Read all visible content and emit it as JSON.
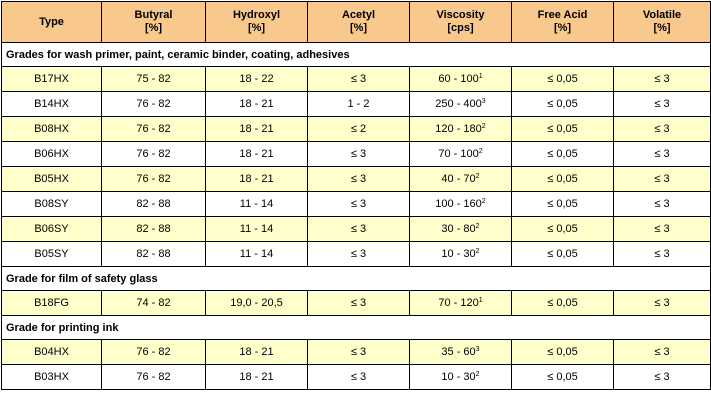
{
  "header": {
    "columns": [
      {
        "title": "Type",
        "unit": ""
      },
      {
        "title": "Butyral",
        "unit": "[%]"
      },
      {
        "title": "Hydroxyl",
        "unit": "[%]"
      },
      {
        "title": "Acetyl",
        "unit": "[%]"
      },
      {
        "title": "Viscosity",
        "unit": "[cps]"
      },
      {
        "title": "Free Acid",
        "unit": "[%]"
      },
      {
        "title": "Volatile",
        "unit": "[%]"
      }
    ]
  },
  "sections": [
    {
      "title": "Grades for wash primer, paint, ceramic binder, coating, adhesives",
      "rows": [
        {
          "type": "B17HX",
          "butyral": "75 - 82",
          "hydroxyl": "18 - 22",
          "acetyl": "≤ 3",
          "viscosity": "60 - 100",
          "viscosity_note": "1",
          "free_acid": "≤ 0,05",
          "volatile": "≤ 3"
        },
        {
          "type": "B14HX",
          "butyral": "76 - 82",
          "hydroxyl": "18 - 21",
          "acetyl": "1 - 2",
          "viscosity": "250 - 400",
          "viscosity_note": "3",
          "free_acid": "≤ 0,05",
          "volatile": "≤ 3"
        },
        {
          "type": "B08HX",
          "butyral": "76 - 82",
          "hydroxyl": "18 - 21",
          "acetyl": "≤ 2",
          "viscosity": "120 - 180",
          "viscosity_note": "2",
          "free_acid": "≤ 0,05",
          "volatile": "≤ 3"
        },
        {
          "type": "B06HX",
          "butyral": "76 - 82",
          "hydroxyl": "18 - 21",
          "acetyl": "≤ 3",
          "viscosity": "70 - 100",
          "viscosity_note": "2",
          "free_acid": "≤ 0,05",
          "volatile": "≤ 3"
        },
        {
          "type": "B05HX",
          "butyral": "76 - 82",
          "hydroxyl": "18 - 21",
          "acetyl": "≤ 3",
          "viscosity": "40 - 70",
          "viscosity_note": "2",
          "free_acid": "≤ 0,05",
          "volatile": "≤ 3"
        },
        {
          "type": "B08SY",
          "butyral": "82 - 88",
          "hydroxyl": "11 - 14",
          "acetyl": "≤ 3",
          "viscosity": "100 - 160",
          "viscosity_note": "2",
          "free_acid": "≤ 0,05",
          "volatile": "≤ 3"
        },
        {
          "type": "B06SY",
          "butyral": "82 - 88",
          "hydroxyl": "11 - 14",
          "acetyl": "≤ 3",
          "viscosity": "30 - 80",
          "viscosity_note": "2",
          "free_acid": "≤ 0,05",
          "volatile": "≤ 3"
        },
        {
          "type": "B05SY",
          "butyral": "82 - 88",
          "hydroxyl": "11 - 14",
          "acetyl": "≤ 3",
          "viscosity": "10 - 30",
          "viscosity_note": "2",
          "free_acid": "≤ 0,05",
          "volatile": "≤ 3"
        }
      ]
    },
    {
      "title": "Grade for film of safety glass",
      "rows": [
        {
          "type": "B18FG",
          "butyral": "74 - 82",
          "hydroxyl": "19,0 - 20,5",
          "acetyl": "≤ 3",
          "viscosity": "70 - 120",
          "viscosity_note": "1",
          "free_acid": "≤ 0,05",
          "volatile": "≤ 3"
        }
      ]
    },
    {
      "title": "Grade for printing ink",
      "rows": [
        {
          "type": "B04HX",
          "butyral": "76 - 82",
          "hydroxyl": "18 - 21",
          "acetyl": "≤ 3",
          "viscosity": "35 - 60",
          "viscosity_note": "3",
          "free_acid": "≤ 0,05",
          "volatile": "≤ 3"
        },
        {
          "type": "B03HX",
          "butyral": "76 - 82",
          "hydroxyl": "18 - 21",
          "acetyl": "≤ 3",
          "viscosity": "10 - 30",
          "viscosity_note": "2",
          "free_acid": "≤ 0,05",
          "volatile": "≤ 3"
        }
      ]
    }
  ],
  "colors": {
    "header_bg": "#f8c88c",
    "highlight_row_bg": "#ffffcc",
    "plain_row_bg": "#ffffff",
    "border": "#000000"
  }
}
